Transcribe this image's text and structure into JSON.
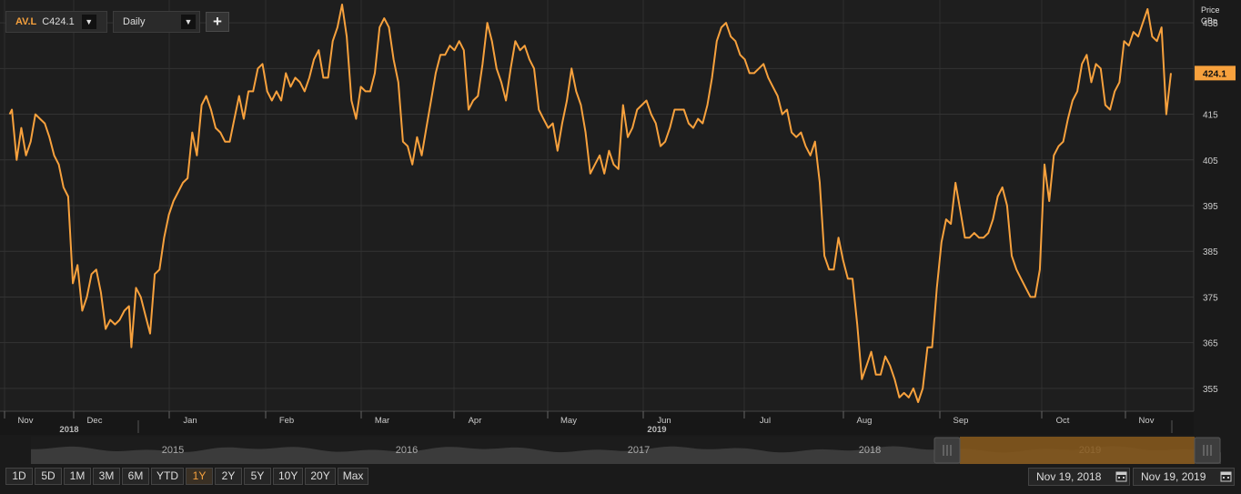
{
  "toolbar": {
    "ric": "AV.L",
    "close_text": "C424.1",
    "interval": "Daily",
    "add_label": "+"
  },
  "price_header": [
    "Price",
    "GBp"
  ],
  "last_price_label": "424.1",
  "colors": {
    "line": "#f7a13d",
    "background": "#1a1a1a",
    "grid": "#3a3a3a",
    "navigator_selection": "#8a5a1c"
  },
  "range_buttons": [
    "1D",
    "5D",
    "1M",
    "3M",
    "6M",
    "YTD",
    "1Y",
    "2Y",
    "5Y",
    "10Y",
    "20Y",
    "Max"
  ],
  "active_range": "1Y",
  "date_from": "Nov 19, 2018",
  "date_to": "Nov 19, 2019",
  "navigator_years": [
    "2015",
    "2016",
    "2017",
    "2018",
    "2019"
  ],
  "icons": {
    "calendar": "calendar-icon",
    "dropdown": "chevron-down-icon",
    "add": "plus-icon",
    "grip": "grip-handle-icon"
  },
  "chart_data": {
    "type": "line",
    "title": "",
    "xlabel": "",
    "ylabel": "Price GBp",
    "ylim": [
      350,
      440
    ],
    "grid": true,
    "x_tick_labels": [
      "Nov",
      "Dec",
      "Jan",
      "Feb",
      "Mar",
      "Apr",
      "May",
      "Jun",
      "Jul",
      "Aug",
      "Sep",
      "Oct",
      "Nov"
    ],
    "year_labels": [
      "2018",
      "2019"
    ],
    "y_ticks": [
      355,
      365,
      375,
      385,
      395,
      405,
      415,
      425,
      435
    ],
    "x_range": [
      "2018-11-19",
      "2019-11-19"
    ],
    "series": [
      {
        "values": [
          [
            1,
            415
          ],
          [
            2,
            416
          ],
          [
            4,
            405
          ],
          [
            6,
            412
          ],
          [
            8,
            406
          ],
          [
            10,
            409
          ],
          [
            12,
            415
          ],
          [
            14,
            414
          ],
          [
            16,
            413
          ],
          [
            18,
            410
          ],
          [
            20,
            406
          ],
          [
            22,
            404
          ],
          [
            24,
            399
          ],
          [
            26,
            397
          ],
          [
            28,
            378
          ],
          [
            30,
            382
          ],
          [
            32,
            372
          ],
          [
            34,
            375
          ],
          [
            36,
            380
          ],
          [
            38,
            381
          ],
          [
            40,
            376
          ],
          [
            42,
            368
          ],
          [
            44,
            370
          ],
          [
            46,
            369
          ],
          [
            48,
            370
          ],
          [
            50,
            372
          ],
          [
            52,
            373
          ],
          [
            53,
            364
          ],
          [
            55,
            377
          ],
          [
            57,
            375
          ],
          [
            59,
            371
          ],
          [
            61,
            367
          ],
          [
            63,
            380
          ],
          [
            65,
            381
          ],
          [
            67,
            388
          ],
          [
            69,
            393
          ],
          [
            71,
            396
          ],
          [
            73,
            398
          ],
          [
            75,
            400
          ],
          [
            77,
            401
          ],
          [
            79,
            411
          ],
          [
            81,
            406
          ],
          [
            83,
            417
          ],
          [
            85,
            419
          ],
          [
            87,
            416
          ],
          [
            89,
            412
          ],
          [
            91,
            411
          ],
          [
            93,
            409
          ],
          [
            95,
            409
          ],
          [
            97,
            414
          ],
          [
            99,
            419
          ],
          [
            101,
            414
          ],
          [
            103,
            420
          ],
          [
            105,
            420
          ],
          [
            107,
            425
          ],
          [
            109,
            426
          ],
          [
            111,
            420
          ],
          [
            113,
            418
          ],
          [
            115,
            420
          ],
          [
            117,
            418
          ],
          [
            119,
            424
          ],
          [
            121,
            421
          ],
          [
            123,
            423
          ],
          [
            125,
            422
          ],
          [
            127,
            420
          ],
          [
            129,
            423
          ],
          [
            131,
            427
          ],
          [
            133,
            429
          ],
          [
            135,
            423
          ],
          [
            137,
            423
          ],
          [
            139,
            431
          ],
          [
            141,
            434
          ],
          [
            143,
            439
          ],
          [
            145,
            432
          ],
          [
            147,
            418
          ],
          [
            149,
            414
          ],
          [
            151,
            421
          ],
          [
            153,
            420
          ],
          [
            155,
            420
          ],
          [
            157,
            424
          ],
          [
            159,
            434
          ],
          [
            161,
            436
          ],
          [
            163,
            434
          ],
          [
            165,
            427
          ],
          [
            167,
            422
          ],
          [
            169,
            409
          ],
          [
            171,
            408
          ],
          [
            173,
            404
          ],
          [
            175,
            410
          ],
          [
            177,
            406
          ],
          [
            179,
            412
          ],
          [
            181,
            418
          ],
          [
            183,
            424
          ],
          [
            185,
            428
          ],
          [
            187,
            428
          ],
          [
            189,
            430
          ],
          [
            191,
            429
          ],
          [
            193,
            431
          ],
          [
            195,
            429
          ],
          [
            197,
            416
          ],
          [
            199,
            418
          ],
          [
            201,
            419
          ],
          [
            203,
            426
          ],
          [
            205,
            435
          ],
          [
            207,
            431
          ],
          [
            209,
            425
          ],
          [
            211,
            422
          ],
          [
            213,
            418
          ],
          [
            215,
            425
          ],
          [
            217,
            431
          ],
          [
            219,
            429
          ],
          [
            221,
            430
          ],
          [
            223,
            427
          ],
          [
            225,
            425
          ],
          [
            227,
            416
          ],
          [
            229,
            414
          ],
          [
            231,
            412
          ],
          [
            233,
            413
          ],
          [
            235,
            407
          ],
          [
            237,
            413
          ],
          [
            239,
            418
          ],
          [
            241,
            425
          ],
          [
            243,
            420
          ],
          [
            245,
            417
          ],
          [
            247,
            411
          ],
          [
            249,
            402
          ],
          [
            251,
            404
          ],
          [
            253,
            406
          ],
          [
            255,
            402
          ],
          [
            257,
            407
          ],
          [
            259,
            404
          ],
          [
            261,
            403
          ],
          [
            263,
            417
          ],
          [
            265,
            410
          ],
          [
            267,
            412
          ],
          [
            269,
            416
          ],
          [
            271,
            417
          ],
          [
            273,
            418
          ],
          [
            275,
            415
          ],
          [
            277,
            413
          ],
          [
            279,
            408
          ],
          [
            281,
            409
          ],
          [
            283,
            412
          ],
          [
            285,
            416
          ],
          [
            287,
            416
          ],
          [
            289,
            416
          ],
          [
            291,
            413
          ],
          [
            293,
            412
          ],
          [
            295,
            414
          ],
          [
            297,
            413
          ],
          [
            299,
            417
          ],
          [
            301,
            423
          ],
          [
            303,
            431
          ],
          [
            305,
            434
          ],
          [
            307,
            435
          ],
          [
            309,
            432
          ],
          [
            311,
            431
          ],
          [
            313,
            428
          ],
          [
            315,
            427
          ],
          [
            317,
            424
          ],
          [
            319,
            424
          ],
          [
            321,
            425
          ],
          [
            323,
            426
          ],
          [
            325,
            423
          ],
          [
            327,
            421
          ],
          [
            329,
            419
          ],
          [
            331,
            415
          ],
          [
            333,
            416
          ],
          [
            335,
            411
          ],
          [
            337,
            410
          ],
          [
            339,
            411
          ],
          [
            341,
            408
          ],
          [
            343,
            406
          ],
          [
            345,
            409
          ],
          [
            347,
            400
          ],
          [
            349,
            384
          ],
          [
            351,
            381
          ],
          [
            353,
            381
          ],
          [
            355,
            388
          ],
          [
            357,
            383
          ],
          [
            359,
            379
          ],
          [
            361,
            379
          ],
          [
            363,
            369
          ],
          [
            365,
            357
          ],
          [
            367,
            360
          ],
          [
            369,
            363
          ],
          [
            371,
            358
          ],
          [
            373,
            358
          ],
          [
            375,
            362
          ],
          [
            377,
            360
          ],
          [
            379,
            357
          ],
          [
            381,
            353
          ],
          [
            383,
            354
          ],
          [
            385,
            353
          ],
          [
            387,
            355
          ],
          [
            389,
            352
          ],
          [
            391,
            355
          ],
          [
            393,
            364
          ],
          [
            395,
            364
          ],
          [
            397,
            377
          ],
          [
            399,
            387
          ],
          [
            401,
            392
          ],
          [
            403,
            391
          ],
          [
            405,
            400
          ],
          [
            407,
            394
          ],
          [
            409,
            388
          ],
          [
            411,
            388
          ],
          [
            413,
            389
          ],
          [
            415,
            388
          ],
          [
            417,
            388
          ],
          [
            419,
            389
          ],
          [
            421,
            392
          ],
          [
            423,
            397
          ],
          [
            425,
            399
          ],
          [
            427,
            395
          ],
          [
            429,
            384
          ],
          [
            431,
            381
          ],
          [
            433,
            379
          ],
          [
            435,
            377
          ],
          [
            437,
            375
          ],
          [
            439,
            375
          ],
          [
            441,
            381
          ],
          [
            443,
            404
          ],
          [
            445,
            396
          ],
          [
            447,
            406
          ],
          [
            449,
            408
          ],
          [
            451,
            409
          ],
          [
            453,
            414
          ],
          [
            455,
            418
          ],
          [
            457,
            420
          ],
          [
            459,
            426
          ],
          [
            461,
            428
          ],
          [
            463,
            422
          ],
          [
            465,
            426
          ],
          [
            467,
            425
          ],
          [
            469,
            417
          ],
          [
            471,
            416
          ],
          [
            473,
            420
          ],
          [
            475,
            422
          ],
          [
            477,
            431
          ],
          [
            479,
            430
          ],
          [
            481,
            433
          ],
          [
            483,
            432
          ],
          [
            485,
            435
          ],
          [
            487,
            438
          ],
          [
            489,
            432
          ],
          [
            491,
            431
          ],
          [
            493,
            434
          ],
          [
            495,
            415
          ],
          [
            497,
            424
          ]
        ]
      }
    ]
  }
}
